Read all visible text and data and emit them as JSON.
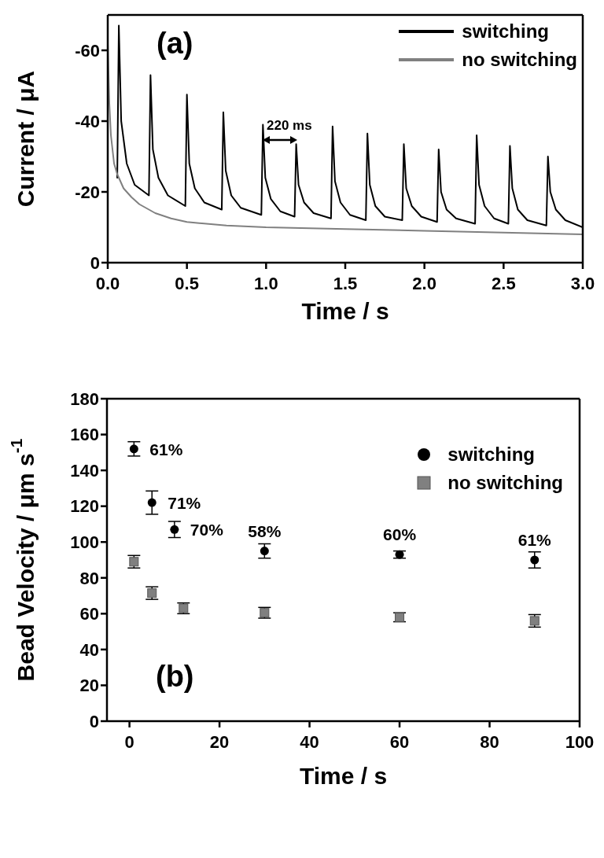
{
  "chart_data": [
    {
      "type": "line",
      "annotations": [
        "(a)",
        "220 ms"
      ],
      "xlabel": "Time / s",
      "ylabel": "Current / μA",
      "xlim": [
        0,
        3
      ],
      "ylim": [
        0,
        -70
      ],
      "xticks": [
        {
          "value": 0,
          "label": "0.0"
        },
        {
          "value": 0.5,
          "label": "0.5"
        },
        {
          "value": 1,
          "label": "1.0"
        },
        {
          "value": 1.5,
          "label": "1.5"
        },
        {
          "value": 2,
          "label": "2.0"
        },
        {
          "value": 2.5,
          "label": "2.5"
        },
        {
          "value": 3,
          "label": "3.0"
        }
      ],
      "yticks": [
        0,
        -20,
        -40,
        -60
      ],
      "legend": "top right",
      "marker": "none",
      "line_style": "solid",
      "series": [
        {
          "name": "switching",
          "color": "#000000",
          "x": [
            0.06,
            0.07,
            0.085,
            0.12,
            0.17,
            0.26,
            0.27,
            0.285,
            0.32,
            0.38,
            0.49,
            0.5,
            0.515,
            0.55,
            0.61,
            0.72,
            0.73,
            0.745,
            0.78,
            0.84,
            0.97,
            0.98,
            0.995,
            1.03,
            1.09,
            1.18,
            1.19,
            1.205,
            1.24,
            1.3,
            1.41,
            1.42,
            1.435,
            1.47,
            1.53,
            1.63,
            1.64,
            1.655,
            1.69,
            1.75,
            1.86,
            1.87,
            1.885,
            1.92,
            1.98,
            2.08,
            2.09,
            2.105,
            2.14,
            2.2,
            2.32,
            2.33,
            2.345,
            2.38,
            2.44,
            2.53,
            2.54,
            2.555,
            2.59,
            2.65,
            2.77,
            2.78,
            2.795,
            2.83,
            2.89,
            3.0
          ],
          "values": [
            -24,
            -67,
            -40,
            -28,
            -22,
            -19,
            -53,
            -32,
            -24,
            -19,
            -16,
            -47.5,
            -28,
            -21,
            -17,
            -15,
            -42.5,
            -26,
            -19,
            -15.5,
            -13.5,
            -39,
            -24,
            -18,
            -14.5,
            -13,
            -33.5,
            -22,
            -17,
            -14,
            -12.5,
            -38.5,
            -23,
            -17,
            -13.5,
            -12,
            -36.5,
            -22,
            -16,
            -13,
            -12,
            -33.5,
            -21,
            -16,
            -13,
            -11.5,
            -32,
            -20,
            -15,
            -12.5,
            -11,
            -36,
            -22,
            -16,
            -12.5,
            -11,
            -33,
            -21,
            -15,
            -12,
            -10.5,
            -30,
            -20,
            -15,
            -12,
            -10
          ]
        },
        {
          "name": "no switching",
          "color": "#808080",
          "x": [
            0,
            0.01,
            0.02,
            0.04,
            0.06,
            0.1,
            0.15,
            0.2,
            0.3,
            0.4,
            0.5,
            0.75,
            1.0,
            1.5,
            2.0,
            2.5,
            3.0
          ],
          "values": [
            -62,
            -45,
            -36,
            -28,
            -25,
            -21,
            -18.5,
            -16.5,
            -14,
            -12.5,
            -11.5,
            -10.5,
            -10,
            -9.5,
            -9,
            -8.5,
            -8
          ]
        }
      ]
    },
    {
      "type": "scatter",
      "annotations": [
        "(b)",
        {
          "text": "61%",
          "x": 1,
          "y": 152
        },
        {
          "text": "71%",
          "x": 5,
          "y": 122
        },
        {
          "text": "70%",
          "x": 10,
          "y": 107
        },
        {
          "text": "58%",
          "x": 30,
          "y": 95
        },
        {
          "text": "60%",
          "x": 60,
          "y": 93
        },
        {
          "text": "61%",
          "x": 90,
          "y": 90
        }
      ],
      "xlabel": "Time / s",
      "ylabel": "Bead Velocity / μm s$^{-1}$",
      "xlim": [
        -5,
        100
      ],
      "ylim": [
        0,
        180
      ],
      "xticks": [
        0,
        20,
        40,
        60,
        80,
        100
      ],
      "yticks": [
        0,
        20,
        40,
        60,
        80,
        100,
        120,
        140,
        160,
        180
      ],
      "legend": "top right",
      "series": [
        {
          "name": "switching",
          "color": "#000000",
          "marker": "circle",
          "x": [
            1,
            5,
            10,
            30,
            60,
            90
          ],
          "values": [
            152,
            122,
            107,
            95,
            93,
            90
          ],
          "errors": [
            4,
            6.5,
            4.5,
            4,
            2,
            4.5
          ]
        },
        {
          "name": "no switching",
          "color": "#808080",
          "marker": "square",
          "x": [
            1,
            5,
            12,
            30,
            60,
            90
          ],
          "values": [
            89,
            71.5,
            63,
            60.5,
            58,
            56
          ],
          "errors": [
            3.5,
            3.5,
            3,
            3,
            2.5,
            3.5
          ]
        }
      ]
    }
  ]
}
